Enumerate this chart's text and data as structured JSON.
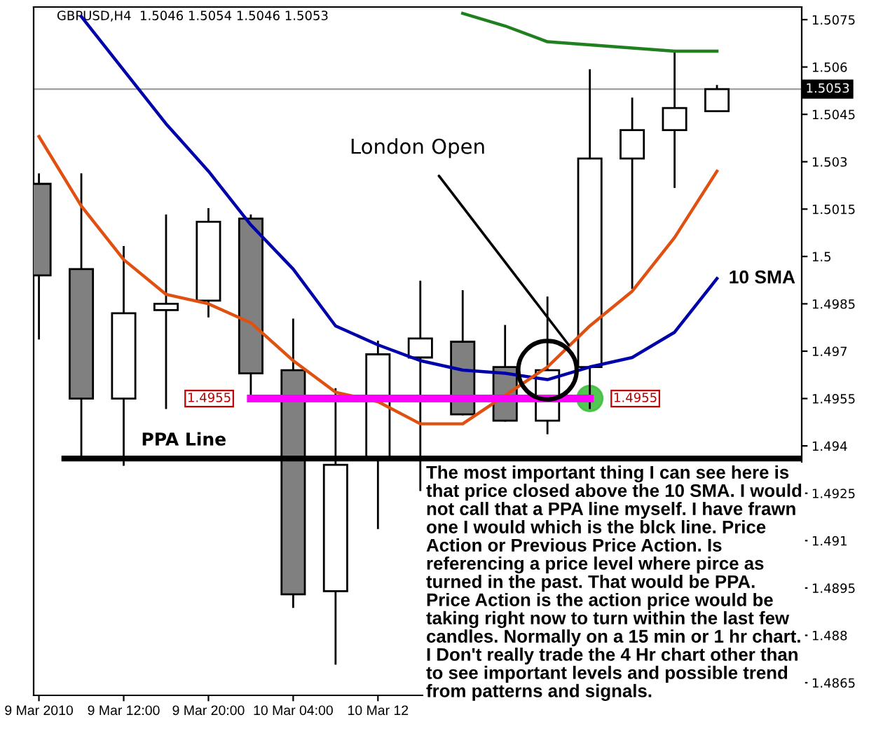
{
  "chart_data": {
    "type": "candlestick",
    "title": "GBPUSD,H4  1.5046 1.5054 1.5046 1.5053",
    "x": [
      "2010-03-09T04:00",
      "2010-03-09T08:00",
      "2010-03-09T12:00",
      "2010-03-09T16:00",
      "2010-03-09T20:00",
      "2010-03-10T00:00",
      "2010-03-10T04:00",
      "2010-03-10T08:00",
      "2010-03-10T12:00",
      "2010-03-10T16:00",
      "2010-03-10T20:00",
      "2010-03-11T00:00",
      "2010-03-11T04:00",
      "2010-03-11T08:00",
      "2010-03-11T12:00",
      "2010-03-11T16:00",
      "2010-03-11T20:00"
    ],
    "ohlc": [
      [
        1.5023,
        1.5026,
        1.4974,
        1.4994
      ],
      [
        1.4996,
        1.5026,
        1.4936,
        1.4955
      ],
      [
        1.4955,
        1.5003,
        1.4934,
        1.4982
      ],
      [
        1.4983,
        1.5013,
        1.4952,
        1.4985
      ],
      [
        1.4986,
        1.5015,
        1.4981,
        1.5011
      ],
      [
        1.5012,
        1.5013,
        1.4956,
        1.4963
      ],
      [
        1.4964,
        1.498,
        1.4889,
        1.4893
      ],
      [
        1.4894,
        1.4958,
        1.4871,
        1.4934
      ],
      [
        1.4936,
        1.4973,
        1.4914,
        1.4969
      ],
      [
        1.4968,
        1.4992,
        1.4926,
        1.4974
      ],
      [
        1.4973,
        1.4989,
        1.495,
        1.495
      ],
      [
        1.4965,
        1.4978,
        1.4948,
        1.4948
      ],
      [
        1.4948,
        1.4987,
        1.4944,
        1.4964
      ],
      [
        1.4965,
        1.5059,
        1.4952,
        1.5031
      ],
      [
        1.5031,
        1.505,
        1.499,
        1.504
      ],
      [
        1.504,
        1.5065,
        1.5022,
        1.5047
      ],
      [
        1.5046,
        1.5054,
        1.5046,
        1.5053
      ]
    ],
    "colors": [
      "#808080",
      "#808080",
      "#ffffff",
      "#ffffff",
      "#ffffff",
      "#808080",
      "#808080",
      "#ffffff",
      "#ffffff",
      "#ffffff",
      "#808080",
      "#808080",
      "#ffffff",
      "#ffffff",
      "#ffffff",
      "#ffffff",
      "#ffffff"
    ],
    "series": [
      {
        "type": "line",
        "color": "#208020",
        "values": [
          null,
          null,
          null,
          null,
          null,
          null,
          null,
          null,
          null,
          null,
          1.5077,
          1.5073,
          1.5068,
          1.5067,
          1.5066,
          1.5065,
          1.5065
        ]
      },
      {
        "type": "line",
        "color": "#0000aa",
        "values": [
          null,
          1.5076,
          1.5059,
          1.5042,
          1.5027,
          1.501,
          1.4996,
          1.4978,
          1.4972,
          1.4967,
          1.4964,
          1.4963,
          1.4961,
          1.4965,
          1.4968,
          1.4976,
          1.4993
        ]
      },
      {
        "type": "line",
        "color": "#e05010",
        "values": [
          1.5038,
          1.5016,
          1.4999,
          1.4988,
          1.4985,
          1.4979,
          1.4967,
          1.4957,
          1.4954,
          1.4947,
          1.4947,
          1.4956,
          1.4965,
          1.4978,
          1.4989,
          1.5006,
          1.5027
        ]
      },
      {
        "type": "line",
        "color": "#ff00ff",
        "values": [
          null,
          null,
          null,
          null,
          null,
          1.4955,
          1.4955,
          1.4955,
          1.4955,
          1.4955,
          1.4955,
          1.4955,
          1.4955,
          1.4955,
          null,
          null,
          null
        ],
        "value_labels": [
          null,
          null,
          null,
          null,
          null,
          "1.4955",
          null,
          null,
          null,
          null,
          null,
          null,
          null,
          "1.4955",
          null,
          null,
          null
        ]
      }
    ],
    "xlim": [
      "2010-03-09T03:30",
      "2010-03-12T04:00"
    ],
    "xticks": [
      {
        "value": "2010-03-09T04:00",
        "label": "9 Mar 2010"
      },
      {
        "value": "2010-03-09T12:00",
        "label": "9 Mar 12:00"
      },
      {
        "value": "2010-03-09T20:00",
        "label": "9 Mar 20:00"
      },
      {
        "value": "2010-03-10T04:00",
        "label": "10 Mar 04:00"
      },
      {
        "value": "2010-03-10T12:00",
        "label": "10 Mar 12"
      }
    ],
    "ylim": [
      1.4861,
      1.5079
    ],
    "yticks": [
      1.4865,
      1.488,
      1.4895,
      1.491,
      1.4925,
      1.494,
      1.4955,
      1.497,
      1.4985,
      1.5,
      1.5015,
      1.503,
      1.5045,
      1.506,
      1.5075
    ],
    "ref_lines": [
      {
        "axis": "y",
        "value": 1.5053,
        "label": "1.5053",
        "color": "#a0a0a0"
      },
      {
        "axis": "y",
        "value": 1.4936,
        "label": "PPA Line",
        "color": "#000000"
      }
    ],
    "annotations": [
      {
        "text": "London Open",
        "x": "2010-03-11T06:00",
        "y": 1.4972
      },
      {
        "text": "10 SMA",
        "x": "2010-03-11T20:00",
        "y": 1.4993
      },
      "The most important thing I can see here is that price closed above the 10 SMA. I would not call that a PPA line myself. I have frawn one I would which is the blck line. Price Action or Previous Price Action. Is referencing a price level where pirce as turned in the past. That would be PPA. Price Action is the action price would be taking right now to turn within the last few candles. Normally on a 15 min or 1 hr chart. I Don't really trade the 4 Hr chart other than to see important levels and possible trend from patterns and signals."
    ],
    "grid": false,
    "legend": false
  }
}
